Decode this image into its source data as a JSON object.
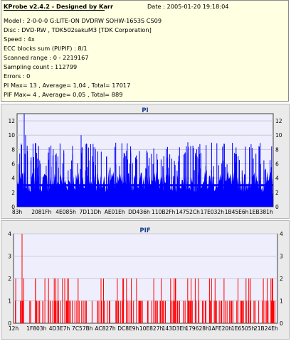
{
  "info": {
    "title": "KProbe v2.4.2 - Designed by Karr",
    "date": "Date : 2005-01-20 19:18:04",
    "lines": [
      "Model : 2-0-0-0 G:LITE-ON DVDRW SOHW-1653S CS09",
      "Disc : DVD-RW , TDK502sakuM3 [TDK Corporation]",
      "Speed : 4x",
      "ECC blocks sum (PI/PIF) : 8/1",
      "Scanned range : 0 - 2219167",
      "Sampling count : 112799",
      "Errors : 0",
      "PI Max= 13 , Average= 1,04 , Total= 17017",
      "PIF Max= 4 , Average= 0,05 , Total= 889"
    ]
  },
  "colors": {
    "pi_fill": "#0000ff",
    "pif_bar": "#ff0000",
    "plot_bg": "#eeeefc",
    "info_bg": "#ffffe1",
    "title_color": "#1c3f8c"
  },
  "chart_data": [
    {
      "type": "bar",
      "title": "PI",
      "ylim": [
        0,
        13
      ],
      "yticks": [
        0,
        2,
        4,
        6,
        8,
        10,
        12
      ],
      "xtick_labels": [
        "83h",
        "2081Fh",
        "4E085h",
        "7D11Dh",
        "AE01Eh",
        "DD436h",
        "110B2Fh",
        "14752Ch",
        "17E032h",
        "1B45E6h",
        "1EB381h"
      ],
      "grid": true,
      "baseline_level": 3,
      "baseline_level_range": [
        2,
        5
      ],
      "max": 13,
      "spike_count": 200,
      "spike_range": [
        5,
        9
      ]
    },
    {
      "type": "bar",
      "title": "PIF",
      "ylim": [
        0,
        4
      ],
      "yticks": [
        0,
        1,
        2,
        3,
        4
      ],
      "xtick_labels": [
        "12h",
        "1F803h",
        "4D3E7h",
        "7C57Bh",
        "AC827h",
        "DC8E9h",
        "10E827h",
        "143D3Eh",
        "179628h",
        "1AFE20h",
        "1E6505h",
        "21B24Eh"
      ],
      "grid": true,
      "max": 4,
      "level_counts": {
        "1": 160,
        "2": 45,
        "3": 0,
        "4": 1
      }
    }
  ]
}
